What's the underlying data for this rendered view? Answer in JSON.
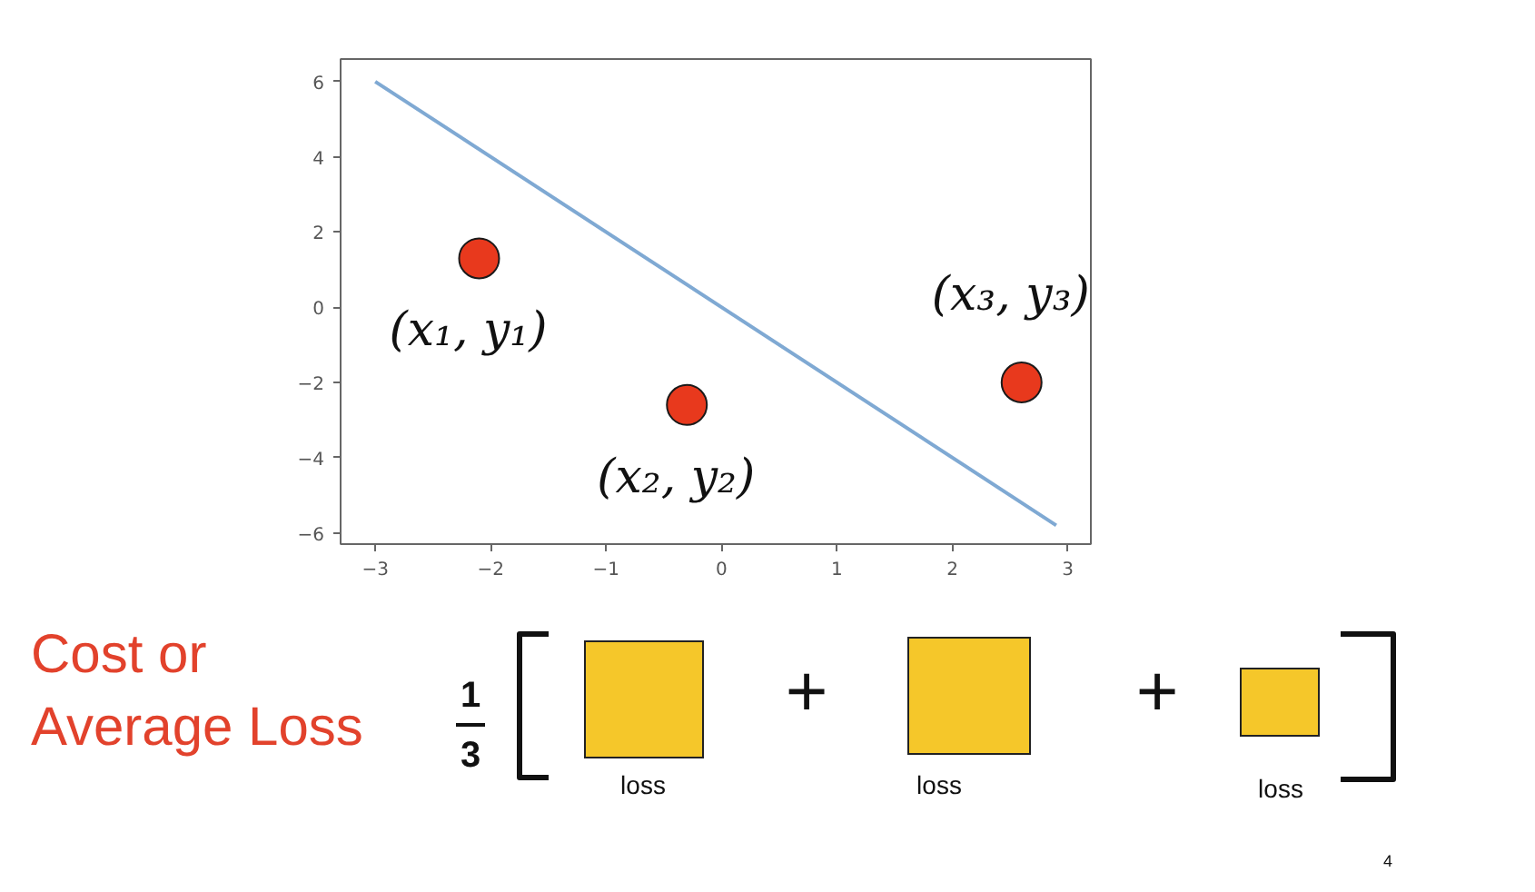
{
  "chart_data": {
    "type": "line",
    "xlim": [
      -3.3,
      3.2
    ],
    "ylim": [
      -6.3,
      6.6
    ],
    "xticks": [
      {
        "value": -3,
        "label": "−3"
      },
      {
        "value": -2,
        "label": "−2"
      },
      {
        "value": -1,
        "label": "−1"
      },
      0,
      1,
      2,
      3
    ],
    "yticks": [
      {
        "value": -6,
        "label": "−6"
      },
      {
        "value": -4,
        "label": "−4"
      },
      {
        "value": -2,
        "label": "−2"
      },
      0,
      2,
      4,
      6
    ],
    "series": [
      {
        "color": "#7fa9d3",
        "line_style": "solid",
        "x": [
          -3,
          2.9
        ],
        "values": [
          6,
          -5.8
        ]
      },
      {
        "type": "scatter",
        "color": "#e8391d",
        "marker": "circle",
        "x": [
          -2.1,
          -0.3,
          2.6
        ],
        "values": [
          1.3,
          -2.6,
          -2.0
        ]
      }
    ],
    "annotations": [
      {
        "text": "(x₁, y₁)",
        "x": -2.1,
        "y": 1.3
      },
      {
        "text": "(x₂, y₂)",
        "x": -0.3,
        "y": -2.6
      },
      {
        "text": "(x₃, y₃)",
        "x": 2.6,
        "y": -2.0
      },
      "Cost or\nAverage Loss",
      "1",
      "3",
      "+",
      "+",
      "loss",
      "loss",
      "loss",
      "4"
    ]
  }
}
